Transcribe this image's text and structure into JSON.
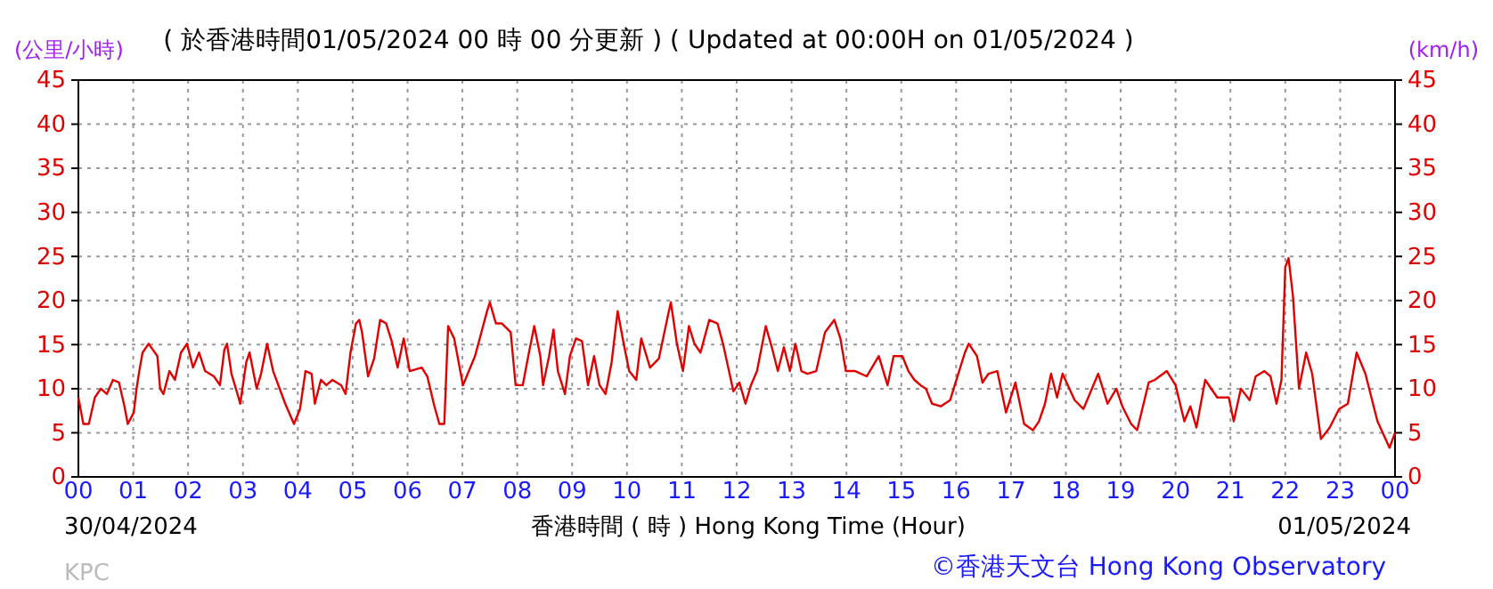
{
  "chart_data": {
    "type": "line",
    "title": "( 於香港時間01/05/2024 00 時 00 分更新 ) ( Updated at 00:00H on 01/05/2024 )",
    "xlabel": "香港時間 ( 時 )  Hong Kong Time (Hour)",
    "ylabel": "(公里/小時)",
    "y2label": "(km/h)",
    "annotations": [
      "30/04/2024",
      "01/05/2024",
      "KPC",
      "©香港天文台 Hong Kong Observatory"
    ],
    "xlim": [
      0,
      24
    ],
    "xticks": [
      {
        "value": 0,
        "label": "00"
      },
      {
        "value": 1,
        "label": "01"
      },
      {
        "value": 2,
        "label": "02"
      },
      {
        "value": 3,
        "label": "03"
      },
      {
        "value": 4,
        "label": "04"
      },
      {
        "value": 5,
        "label": "05"
      },
      {
        "value": 6,
        "label": "06"
      },
      {
        "value": 7,
        "label": "07"
      },
      {
        "value": 8,
        "label": "08"
      },
      {
        "value": 9,
        "label": "09"
      },
      {
        "value": 10,
        "label": "10"
      },
      {
        "value": 11,
        "label": "11"
      },
      {
        "value": 12,
        "label": "12"
      },
      {
        "value": 13,
        "label": "13"
      },
      {
        "value": 14,
        "label": "14"
      },
      {
        "value": 15,
        "label": "15"
      },
      {
        "value": 16,
        "label": "16"
      },
      {
        "value": 17,
        "label": "17"
      },
      {
        "value": 18,
        "label": "18"
      },
      {
        "value": 19,
        "label": "19"
      },
      {
        "value": 20,
        "label": "20"
      },
      {
        "value": 21,
        "label": "21"
      },
      {
        "value": 22,
        "label": "22"
      },
      {
        "value": 23,
        "label": "23"
      },
      {
        "value": 24,
        "label": "00"
      }
    ],
    "ylim": [
      0,
      45
    ],
    "yticks": [
      0,
      5,
      10,
      15,
      20,
      25,
      30,
      35,
      40,
      45
    ],
    "y2lim": [
      0,
      45
    ],
    "y2ticks": [
      0,
      5,
      10,
      15,
      20,
      25,
      30,
      35,
      40,
      45
    ],
    "grid": true,
    "series": [
      {
        "color": "#e00000",
        "x": [
          0,
          0.09,
          0.19,
          0.3,
          0.41,
          0.52,
          0.63,
          0.74,
          0.84,
          0.9,
          1.01,
          1.06,
          1.11,
          1.17,
          1.28,
          1.44,
          1.49,
          1.55,
          1.66,
          1.76,
          1.87,
          1.98,
          2.09,
          2.2,
          2.31,
          2.47,
          2.58,
          2.66,
          2.71,
          2.79,
          2.9,
          2.95,
          3.06,
          3.12,
          3.25,
          3.33,
          3.44,
          3.55,
          3.77,
          3.93,
          4.04,
          4.14,
          4.25,
          4.31,
          4.42,
          4.52,
          4.63,
          4.79,
          4.87,
          4.96,
          5.06,
          5.12,
          5.17,
          5.28,
          5.39,
          5.5,
          5.61,
          5.71,
          5.82,
          5.93,
          6.04,
          6.26,
          6.36,
          6.49,
          6.58,
          6.67,
          6.74,
          6.85,
          7.01,
          7.23,
          7.45,
          7.5,
          7.61,
          7.72,
          7.88,
          7.97,
          8.1,
          8.2,
          8.31,
          8.42,
          8.47,
          8.58,
          8.66,
          8.74,
          8.87,
          8.96,
          9.07,
          9.18,
          9.29,
          9.4,
          9.5,
          9.61,
          9.72,
          9.83,
          9.94,
          10.04,
          10.17,
          10.26,
          10.42,
          10.58,
          10.75,
          10.8,
          10.91,
          11.02,
          11.13,
          11.23,
          11.34,
          11.5,
          11.65,
          11.75,
          11.94,
          12.05,
          12.16,
          12.26,
          12.37,
          12.53,
          12.64,
          12.75,
          12.86,
          12.97,
          13.07,
          13.18,
          13.29,
          13.45,
          13.61,
          13.78,
          13.89,
          13.99,
          14.16,
          14.37,
          14.59,
          14.75,
          14.86,
          15.02,
          15.13,
          15.24,
          15.35,
          15.45,
          15.56,
          15.72,
          15.89,
          15.99,
          16.16,
          16.23,
          16.38,
          16.48,
          16.59,
          16.75,
          16.91,
          17.08,
          17.24,
          17.4,
          17.51,
          17.62,
          17.73,
          17.84,
          17.94,
          18.16,
          18.32,
          18.59,
          18.76,
          18.92,
          19.03,
          19.19,
          19.3,
          19.51,
          19.62,
          19.84,
          20,
          20.16,
          20.27,
          20.38,
          20.54,
          20.76,
          20.97,
          21.06,
          21.19,
          21.35,
          21.46,
          21.62,
          21.73,
          21.84,
          21.93,
          22,
          22.06,
          22.14,
          22.25,
          22.38,
          22.49,
          22.65,
          22.81,
          22.98,
          23.14,
          23.3,
          23.46,
          23.68,
          23.9,
          24
        ],
        "values": [
          9,
          6,
          6,
          9,
          10,
          9.4,
          11,
          10.7,
          8,
          6,
          7.3,
          10,
          12,
          14.1,
          15.1,
          13.7,
          10,
          9.4,
          12,
          11,
          14.1,
          15.1,
          12.4,
          14.1,
          12,
          11.4,
          10.4,
          14.4,
          15.1,
          11.7,
          9.4,
          8.3,
          13,
          14.1,
          10,
          11.7,
          15.1,
          12,
          8.3,
          6,
          7.7,
          12,
          11.7,
          8.3,
          11,
          10.4,
          11,
          10.4,
          9.4,
          14.1,
          17.4,
          17.8,
          16.4,
          11.4,
          13.4,
          17.8,
          17.4,
          15.4,
          12.4,
          15.7,
          12,
          12.4,
          11.4,
          8,
          6,
          6,
          17.1,
          15.7,
          10.4,
          13.7,
          18.8,
          19.8,
          17.4,
          17.4,
          16.4,
          10.4,
          10.4,
          13.7,
          17.1,
          13.7,
          10.4,
          13.7,
          16.7,
          12,
          9.4,
          13.7,
          15.7,
          15.4,
          10.4,
          13.7,
          10.4,
          9.4,
          13,
          18.8,
          15.1,
          12,
          11,
          15.7,
          12.4,
          13.4,
          18.4,
          19.8,
          15.1,
          12,
          17.1,
          15.1,
          14.1,
          17.8,
          17.4,
          15.1,
          9.7,
          10.7,
          8.3,
          10.4,
          12,
          17.1,
          14.7,
          12,
          14.7,
          12,
          15.1,
          12,
          11.7,
          12,
          16.4,
          17.8,
          15.7,
          12,
          12,
          11.4,
          13.7,
          10.4,
          13.7,
          13.7,
          12,
          11,
          10.4,
          10,
          8.3,
          8,
          8.7,
          10.7,
          14.1,
          15.1,
          13.7,
          10.7,
          11.7,
          12,
          7.3,
          10.7,
          6,
          5.3,
          6.3,
          8.3,
          11.7,
          9,
          11.7,
          8.7,
          7.7,
          11.7,
          8.3,
          10,
          8,
          6,
          5.3,
          10.7,
          11,
          12,
          10.4,
          6.3,
          8,
          5.6,
          11,
          9,
          9,
          6.3,
          10,
          8.7,
          11.4,
          12,
          11.4,
          8.3,
          11,
          23.8,
          24.8,
          20.5,
          10,
          14.1,
          11.7,
          4.3,
          5.6,
          7.7,
          8.3,
          14.1,
          11.7,
          6.3,
          3.3,
          5
        ]
      }
    ]
  }
}
